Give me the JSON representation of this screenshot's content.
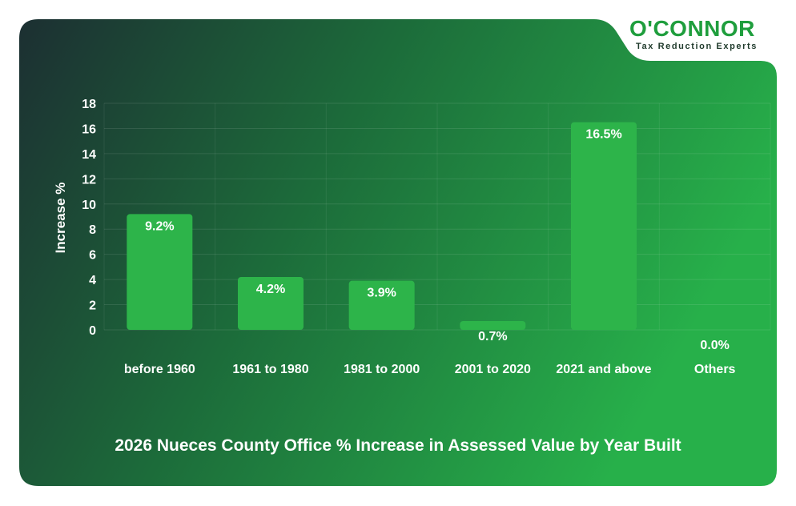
{
  "brand": {
    "name": "O'CONNOR",
    "tagline": "Tax Reduction Experts"
  },
  "colors": {
    "bar": "#2db44a",
    "card_dark": "#1c2f32",
    "card_light": "#27b04a",
    "text": "#ffffff",
    "brand_green": "#1f9e3d"
  },
  "chart_data": {
    "type": "bar",
    "title": "2026 Nueces County Office % Increase in Assessed Value by Year Built",
    "xlabel": "",
    "ylabel": "Increase %",
    "ylim": [
      0,
      18
    ],
    "yticks": [
      0,
      2,
      4,
      6,
      8,
      10,
      12,
      14,
      16,
      18
    ],
    "categories": [
      "before 1960",
      "1961 to 1980",
      "1981 to 2000",
      "2001 to 2020",
      "2021 and above",
      "Others"
    ],
    "values": [
      9.2,
      4.2,
      3.9,
      0.7,
      16.5,
      0.0
    ],
    "value_labels": [
      "9.2%",
      "4.2%",
      "3.9%",
      "0.7%",
      "16.5%",
      "0.0%"
    ],
    "grid": true,
    "legend": "none"
  }
}
